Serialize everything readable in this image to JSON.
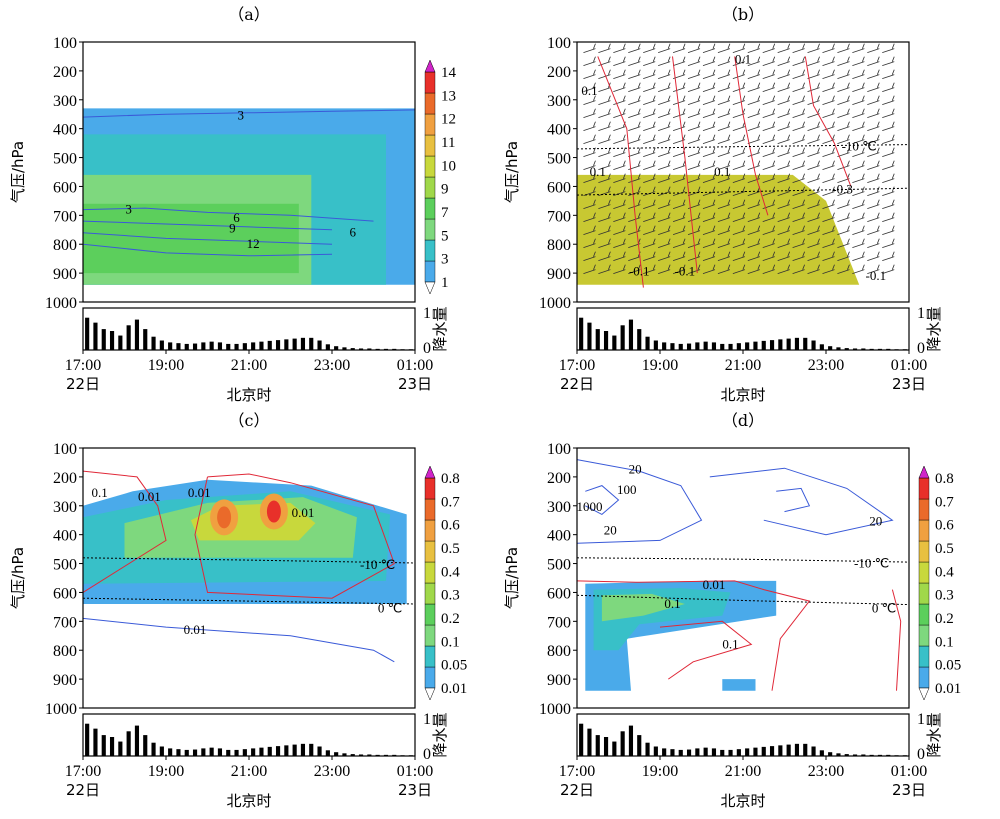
{
  "figure": {
    "x_ticks": [
      "17:00",
      "19:00",
      "21:00",
      "23:00",
      "01:00"
    ],
    "x_date_start": "22日",
    "x_date_end": "23日",
    "x_axis_label": "北京时",
    "y_axis_label": "气压/hPa",
    "y_ticks": [
      100,
      200,
      300,
      400,
      500,
      600,
      700,
      800,
      900,
      1000
    ],
    "precip_label": "降水量",
    "precip_ticks": [
      "1",
      "0"
    ]
  },
  "chart_data": [
    {
      "panel": "(a)",
      "type": "heatmap",
      "title": "（a）",
      "x_range_hours": [
        17,
        25
      ],
      "ylim": [
        1000,
        100
      ],
      "colorbar": {
        "ticks": [
          "1",
          "3",
          "5",
          "7",
          "9",
          "10",
          "11",
          "12",
          "13",
          "14"
        ]
      },
      "fill_levels": [
        {
          "from_hour": 17,
          "to_hour": 25,
          "p_top": 330,
          "p_bottom": 940,
          "value": "1-3"
        },
        {
          "from_hour": 17,
          "to_hour": 24.3,
          "p_top": 420,
          "p_bottom": 940,
          "value": "3-5"
        },
        {
          "from_hour": 17,
          "to_hour": 22.5,
          "p_top": 560,
          "p_bottom": 940,
          "value": "5-7"
        },
        {
          "from_hour": 17,
          "to_hour": 22.2,
          "p_top": 660,
          "p_bottom": 900,
          "value": "7-9"
        }
      ],
      "contour_labels": [
        "3",
        "3",
        "6",
        "9",
        "12",
        "6"
      ]
    },
    {
      "panel": "(b)",
      "type": "heatmap",
      "title": "（b）",
      "x_range_hours": [
        17,
        25
      ],
      "ylim": [
        1000,
        100
      ],
      "shaded_region": {
        "from_hour": 17,
        "to_hour": 23.8,
        "p_top": 560,
        "p_bottom": 940
      },
      "contour_labels": [
        "0.1",
        "0.1",
        "0.1",
        "0.1",
        "-0.1",
        "-0.1",
        "-0.1",
        "-0.3"
      ],
      "isotherm_labels": [
        "-10 ℃"
      ],
      "wind_barbs": true
    },
    {
      "panel": "(c)",
      "type": "heatmap",
      "title": "（c）",
      "x_range_hours": [
        17,
        25
      ],
      "ylim": [
        1000,
        100
      ],
      "colorbar": {
        "ticks": [
          "0.01",
          "0.05",
          "0.1",
          "0.2",
          "0.3",
          "0.4",
          "0.5",
          "0.6",
          "0.7",
          "0.8"
        ]
      },
      "maxima": [
        {
          "hour": 20.4,
          "p": 340,
          "value": "0.6-0.7"
        },
        {
          "hour": 21.6,
          "p": 320,
          "value": "0.7-0.8"
        }
      ],
      "contour_labels": [
        "0.1",
        "0.01",
        "0.01",
        "0.01",
        "0.01"
      ],
      "isotherm_labels": [
        "-10 ℃",
        "0 ℃"
      ]
    },
    {
      "panel": "(d)",
      "type": "heatmap",
      "title": "（d）",
      "x_range_hours": [
        17,
        25
      ],
      "ylim": [
        1000,
        100
      ],
      "colorbar": {
        "ticks": [
          "0.01",
          "0.05",
          "0.1",
          "0.2",
          "0.3",
          "0.4",
          "0.5",
          "0.6",
          "0.7",
          "0.8"
        ]
      },
      "contour_labels": [
        "20",
        "100",
        "1000",
        "20",
        "20",
        "0.01",
        "0.1",
        "0.1"
      ],
      "isotherm_labels": [
        "-10 ℃",
        "0 ℃"
      ]
    }
  ],
  "precip_bars": {
    "type": "bar",
    "ylim": [
      0,
      1
    ],
    "values": [
      0.85,
      0.72,
      0.55,
      0.5,
      0.38,
      0.65,
      0.8,
      0.55,
      0.35,
      0.25,
      0.2,
      0.18,
      0.16,
      0.17,
      0.2,
      0.22,
      0.2,
      0.16,
      0.16,
      0.18,
      0.2,
      0.22,
      0.24,
      0.26,
      0.28,
      0.3,
      0.32,
      0.32,
      0.25,
      0.15,
      0.1,
      0.07,
      0.05,
      0.04,
      0.04,
      0.03,
      0.03,
      0.03,
      0.02,
      0.02
    ]
  },
  "colors": {
    "sh_blue": "#4aaaea",
    "sh_cyan": "#38c0c8",
    "sh_lightgreen": "#7ed87e",
    "sh_green": "#5ccf5c",
    "sh_yellowgreen": "#c8d83c",
    "sh_orange": "#f0a040",
    "sh_deeporange": "#ea6a2a",
    "sh_red": "#e8302a",
    "olive": "#c8c832",
    "contour_blue": "#3a5ad8",
    "contour_red": "#e02838"
  }
}
